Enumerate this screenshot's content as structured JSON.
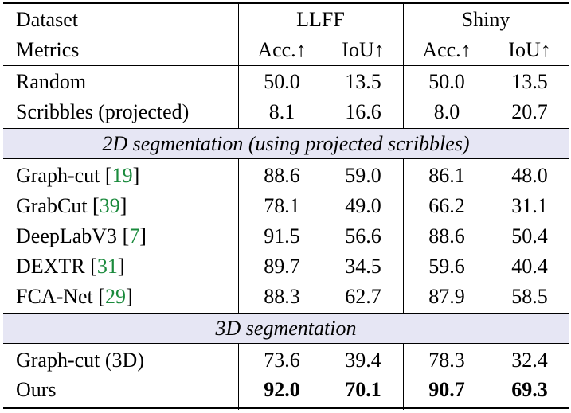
{
  "header": {
    "dataset_label": "Dataset",
    "metrics_label": "Metrics",
    "group1": "LLFF",
    "group2": "Shiny",
    "acc_label": "Acc.↑",
    "iou_label": "IoU↑"
  },
  "baselines": [
    {
      "method": "Random",
      "llff_acc": "50.0",
      "llff_iou": "13.5",
      "shiny_acc": "50.0",
      "shiny_iou": "13.5"
    },
    {
      "method": "Scribbles (projected)",
      "llff_acc": "8.1",
      "llff_iou": "16.6",
      "shiny_acc": "8.0",
      "shiny_iou": "20.7"
    }
  ],
  "section_2d": {
    "title": "2D segmentation (using projected scribbles)",
    "rows": [
      {
        "method": "Graph-cut",
        "ref": "19",
        "llff_acc": "88.6",
        "llff_iou": "59.0",
        "shiny_acc": "86.1",
        "shiny_iou": "48.0"
      },
      {
        "method": "GrabCut",
        "ref": "39",
        "llff_acc": "78.1",
        "llff_iou": "49.0",
        "shiny_acc": "66.2",
        "shiny_iou": "31.1"
      },
      {
        "method": "DeepLabV3",
        "ref": "7",
        "llff_acc": "91.5",
        "llff_iou": "56.6",
        "shiny_acc": "88.6",
        "shiny_iou": "50.4"
      },
      {
        "method": "DEXTR",
        "ref": "31",
        "llff_acc": "89.7",
        "llff_iou": "34.5",
        "shiny_acc": "59.6",
        "shiny_iou": "40.4"
      },
      {
        "method": "FCA-Net",
        "ref": "29",
        "llff_acc": "88.3",
        "llff_iou": "62.7",
        "shiny_acc": "87.9",
        "shiny_iou": "58.5"
      }
    ]
  },
  "section_3d": {
    "title": "3D segmentation",
    "rows": [
      {
        "method": "Graph-cut (3D)",
        "llff_acc": "73.6",
        "llff_iou": "39.4",
        "shiny_acc": "78.3",
        "shiny_iou": "32.4"
      },
      {
        "method": "Ours",
        "llff_acc": "92.0",
        "llff_iou": "70.1",
        "shiny_acc": "90.7",
        "shiny_iou": "69.3"
      }
    ]
  }
}
